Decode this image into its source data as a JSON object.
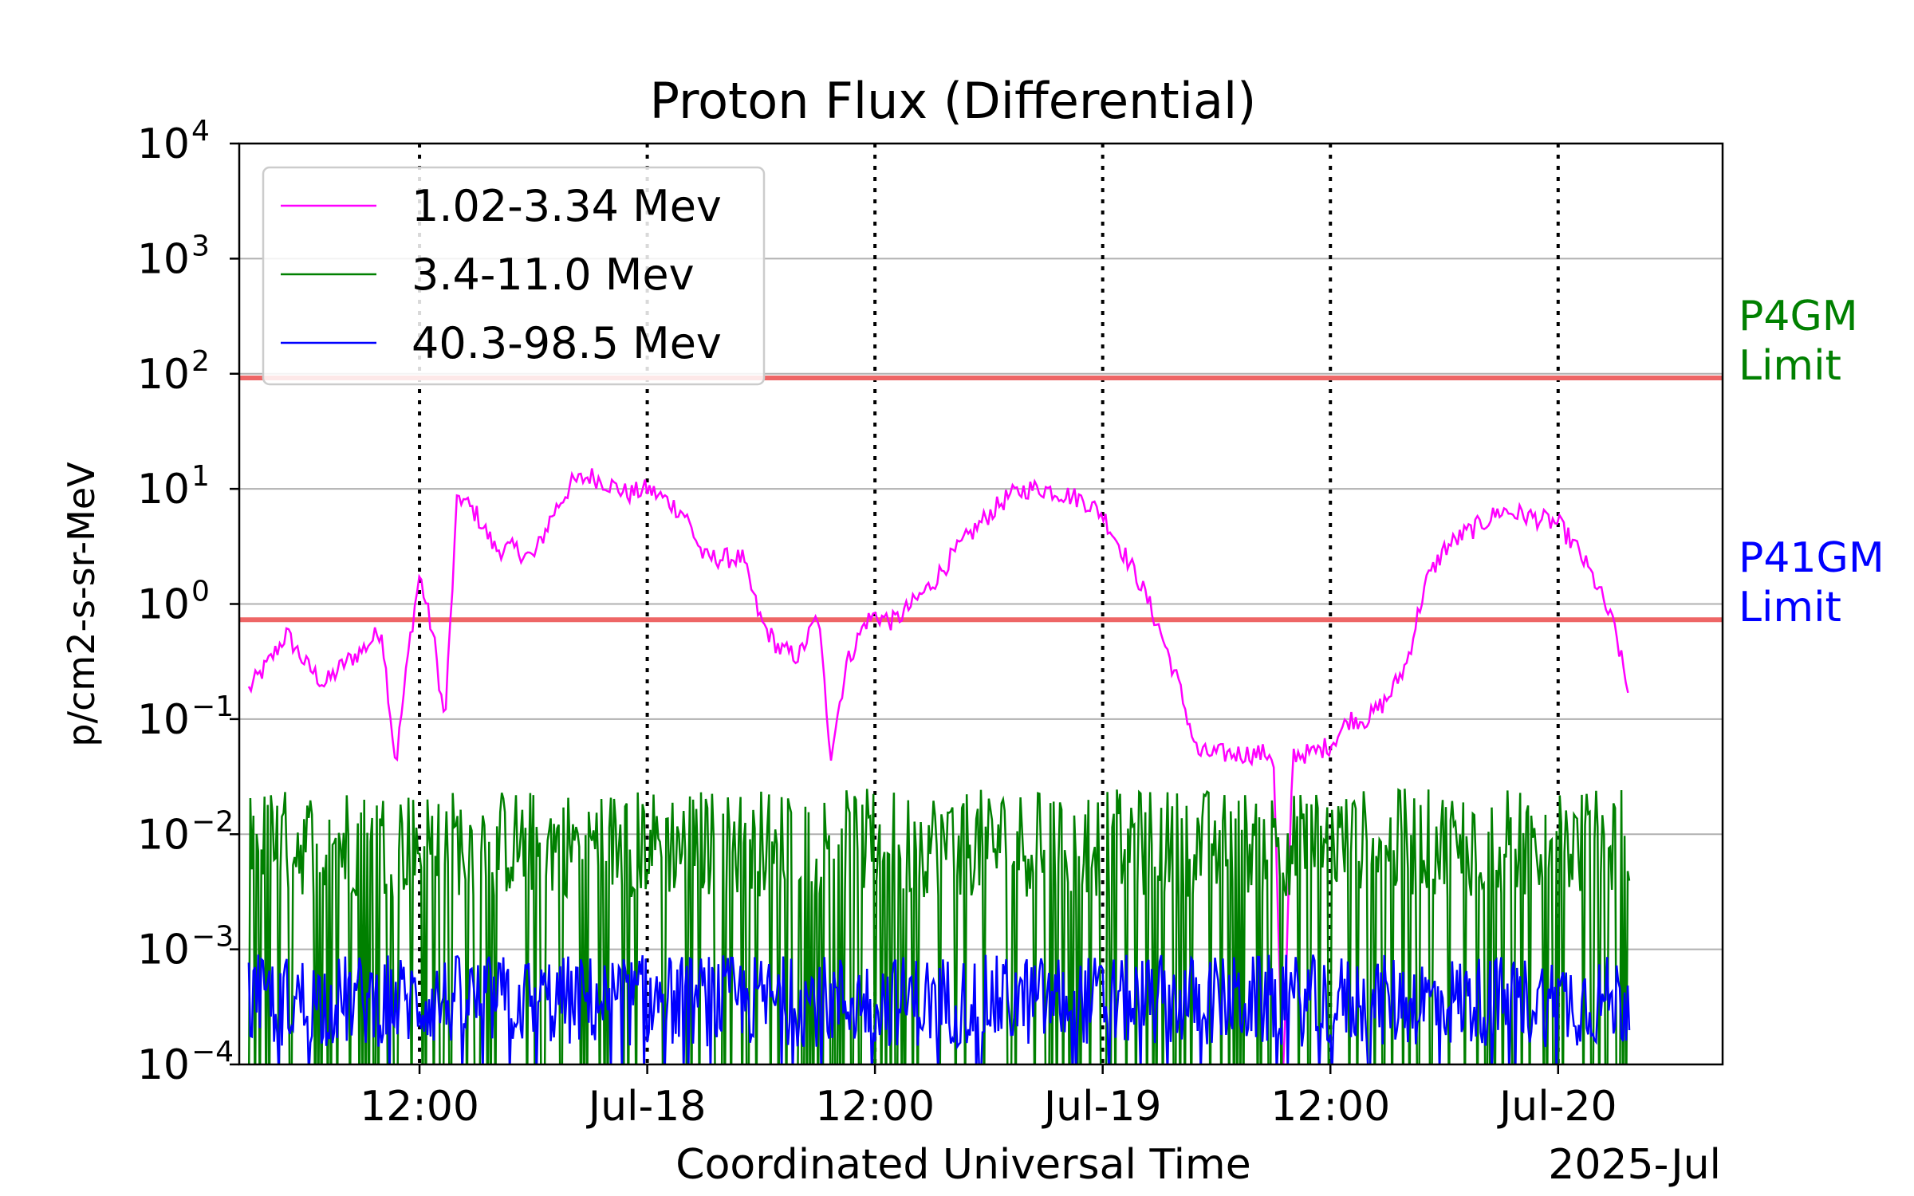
{
  "chart_data": {
    "type": "line",
    "title": "Proton Flux (Differential)",
    "xlabel": "Coordinated Universal Time",
    "ylabel": "p/cm2-s-sr-MeV",
    "x_offset_label": "2025-Jul",
    "yscale": "log",
    "ylim": [
      0.0001,
      10000
    ],
    "xlim": [
      "2025-07-17T02:30",
      "2025-07-20T08:40"
    ],
    "y_ticks": [
      {
        "value": 0.0001,
        "base": "10",
        "exp": "−4"
      },
      {
        "value": 0.001,
        "base": "10",
        "exp": "−3"
      },
      {
        "value": 0.01,
        "base": "10",
        "exp": "−2"
      },
      {
        "value": 0.1,
        "base": "10",
        "exp": "−1"
      },
      {
        "value": 1,
        "base": "10",
        "exp": "0"
      },
      {
        "value": 10,
        "base": "10",
        "exp": "1"
      },
      {
        "value": 100,
        "base": "10",
        "exp": "2"
      },
      {
        "value": 1000,
        "base": "10",
        "exp": "3"
      },
      {
        "value": 10000,
        "base": "10",
        "exp": "4"
      }
    ],
    "x_ticks": [
      {
        "time": "2025-07-17T12:00",
        "label": "12:00"
      },
      {
        "time": "2025-07-18T00:00",
        "label": "Jul-18"
      },
      {
        "time": "2025-07-18T12:00",
        "label": "12:00"
      },
      {
        "time": "2025-07-19T00:00",
        "label": "Jul-19"
      },
      {
        "time": "2025-07-19T12:00",
        "label": "12:00"
      },
      {
        "time": "2025-07-20T00:00",
        "label": "Jul-20"
      }
    ],
    "grid": "horizontal major",
    "vertical_markers": "dotted at each x tick",
    "legend": "upper-left",
    "thresholds": [
      {
        "label": "P4GM Limit",
        "label_lines": [
          "P4GM",
          "Limit"
        ],
        "value": 92,
        "line_color": "#ee6666",
        "label_color": "#008000"
      },
      {
        "label": "P41GM Limit",
        "label_lines": [
          "P41GM",
          "Limit"
        ],
        "value": 0.73,
        "line_color": "#ee6666",
        "label_color": "#0000ff"
      }
    ],
    "series": [
      {
        "name": "1.02-3.34 Mev",
        "color": "#ff00ff",
        "points": [
          [
            "2025-07-17T03:00",
            0.18
          ],
          [
            "2025-07-17T04:00",
            0.3
          ],
          [
            "2025-07-17T05:00",
            0.55
          ],
          [
            "2025-07-17T06:00",
            0.3
          ],
          [
            "2025-07-17T07:00",
            0.2
          ],
          [
            "2025-07-17T08:00",
            0.3
          ],
          [
            "2025-07-17T09:00",
            0.4
          ],
          [
            "2025-07-17T10:00",
            0.6
          ],
          [
            "2025-07-17T10:45",
            0.04
          ],
          [
            "2025-07-17T11:30",
            0.5
          ],
          [
            "2025-07-17T12:00",
            1.8
          ],
          [
            "2025-07-17T12:45",
            0.5
          ],
          [
            "2025-07-17T13:20",
            0.09
          ],
          [
            "2025-07-17T14:00",
            9.0
          ],
          [
            "2025-07-17T15:00",
            6.0
          ],
          [
            "2025-07-17T16:00",
            3.0
          ],
          [
            "2025-07-17T17:00",
            3.0
          ],
          [
            "2025-07-17T18:00",
            2.5
          ],
          [
            "2025-07-17T19:00",
            6.0
          ],
          [
            "2025-07-17T20:00",
            11.0
          ],
          [
            "2025-07-17T21:00",
            13.0
          ],
          [
            "2025-07-17T22:00",
            11.0
          ],
          [
            "2025-07-17T23:00",
            9.0
          ],
          [
            "2025-07-18T00:00",
            10.0
          ],
          [
            "2025-07-18T01:00",
            8.0
          ],
          [
            "2025-07-18T02:00",
            6.0
          ],
          [
            "2025-07-18T03:00",
            2.5
          ],
          [
            "2025-07-18T04:00",
            2.5
          ],
          [
            "2025-07-18T05:00",
            2.5
          ],
          [
            "2025-07-18T06:00",
            0.7
          ],
          [
            "2025-07-18T07:00",
            0.4
          ],
          [
            "2025-07-18T08:00",
            0.35
          ],
          [
            "2025-07-18T09:00",
            0.8
          ],
          [
            "2025-07-18T09:40",
            0.05
          ],
          [
            "2025-07-18T10:30",
            0.3
          ],
          [
            "2025-07-18T11:30",
            0.7
          ],
          [
            "2025-07-18T12:00",
            0.8
          ],
          [
            "2025-07-18T13:00",
            0.7
          ],
          [
            "2025-07-18T14:00",
            1.0
          ],
          [
            "2025-07-18T15:00",
            1.5
          ],
          [
            "2025-07-18T16:00",
            2.5
          ],
          [
            "2025-07-18T17:00",
            4.0
          ],
          [
            "2025-07-18T18:00",
            6.0
          ],
          [
            "2025-07-18T19:00",
            8.5
          ],
          [
            "2025-07-18T20:00",
            10.0
          ],
          [
            "2025-07-18T21:00",
            10.0
          ],
          [
            "2025-07-18T22:00",
            9.0
          ],
          [
            "2025-07-18T23:00",
            8.0
          ],
          [
            "2025-07-19T00:00",
            6.0
          ],
          [
            "2025-07-19T01:00",
            3.0
          ],
          [
            "2025-07-19T02:00",
            1.5
          ],
          [
            "2025-07-19T03:00",
            0.6
          ],
          [
            "2025-07-19T04:00",
            0.2
          ],
          [
            "2025-07-19T05:00",
            0.05
          ],
          [
            "2025-07-19T06:00",
            0.05
          ],
          [
            "2025-07-19T07:00",
            0.05
          ],
          [
            "2025-07-19T08:00",
            0.05
          ],
          [
            "2025-07-19T09:00",
            0.05
          ],
          [
            "2025-07-19T09:30",
            5e-05
          ],
          [
            "2025-07-19T10:00",
            0.05
          ],
          [
            "2025-07-19T11:00",
            0.05
          ],
          [
            "2025-07-19T12:00",
            0.06
          ],
          [
            "2025-07-19T13:00",
            0.1
          ],
          [
            "2025-07-19T14:00",
            0.1
          ],
          [
            "2025-07-19T15:00",
            0.15
          ],
          [
            "2025-07-19T16:00",
            0.3
          ],
          [
            "2025-07-19T17:00",
            1.5
          ],
          [
            "2025-07-19T18:00",
            3.0
          ],
          [
            "2025-07-19T19:00",
            4.0
          ],
          [
            "2025-07-19T20:00",
            5.0
          ],
          [
            "2025-07-19T21:00",
            6.5
          ],
          [
            "2025-07-19T22:00",
            6.0
          ],
          [
            "2025-07-19T23:00",
            5.5
          ],
          [
            "2025-07-20T00:00",
            5.0
          ],
          [
            "2025-07-20T01:00",
            3.0
          ],
          [
            "2025-07-20T02:00",
            1.5
          ],
          [
            "2025-07-20T03:00",
            0.6
          ],
          [
            "2025-07-20T03:45",
            0.15
          ]
        ]
      },
      {
        "name": "3.4-11.0 Mev",
        "color": "#008000",
        "baseline": 0.008,
        "range": [
          3e-05,
          0.025
        ],
        "x_range": [
          "2025-07-17T03:00",
          "2025-07-20T03:45"
        ]
      },
      {
        "name": "40.3-98.5 Mev",
        "color": "#0000ff",
        "baseline": 0.0004,
        "range": [
          8e-05,
          0.0009
        ],
        "x_range": [
          "2025-07-17T03:00",
          "2025-07-20T03:45"
        ]
      }
    ]
  }
}
